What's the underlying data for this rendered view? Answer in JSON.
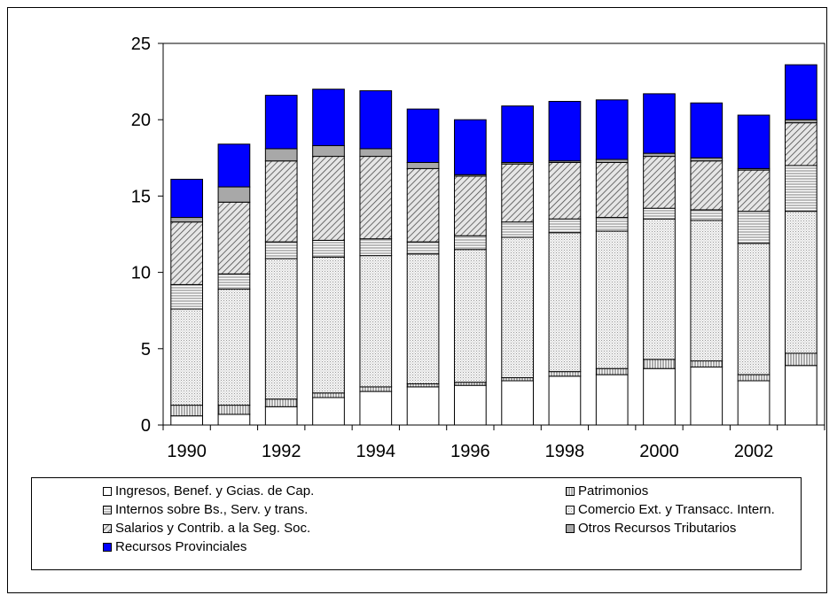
{
  "chart_data": {
    "type": "bar",
    "stacked": true,
    "categories": [
      "1990",
      "1991",
      "1992",
      "1993",
      "1994",
      "1995",
      "1996",
      "1997",
      "1998",
      "1999",
      "2000",
      "2001",
      "2002",
      "2003"
    ],
    "x_tick_labels": [
      "1990",
      "1992",
      "1994",
      "1996",
      "1998",
      "2000",
      "2002"
    ],
    "y_ticks": [
      0,
      5,
      10,
      15,
      20,
      25
    ],
    "ylim": [
      0,
      25
    ],
    "grid": false,
    "legend_position": "bottom",
    "series": [
      {
        "name": "Ingresos, Benef. y Gcias. de Cap.",
        "color": "#ffffff",
        "pattern": "none",
        "values": [
          0.6,
          0.7,
          1.2,
          1.8,
          2.2,
          2.5,
          2.6,
          2.9,
          3.2,
          3.3,
          3.7,
          3.8,
          2.9,
          3.9
        ]
      },
      {
        "name": "Patrimonios",
        "color": "#d8d8d8",
        "pattern": "vlines",
        "values": [
          0.7,
          0.6,
          0.5,
          0.3,
          0.3,
          0.2,
          0.2,
          0.2,
          0.3,
          0.4,
          0.6,
          0.4,
          0.4,
          0.8
        ]
      },
      {
        "name": "Comercio Ext. y Transacc. Intern.",
        "color": "#e8e8e8",
        "pattern": "dots",
        "values": [
          6.3,
          7.6,
          9.2,
          8.9,
          8.6,
          8.5,
          8.7,
          9.2,
          9.1,
          9.0,
          9.2,
          9.2,
          8.6,
          9.3
        ]
      },
      {
        "name": "Internos sobre Bs., Serv. y trans.",
        "color": "#ffffff",
        "pattern": "hlines",
        "values": [
          1.6,
          1.0,
          1.1,
          1.1,
          1.1,
          0.8,
          0.9,
          1.0,
          0.9,
          0.9,
          0.7,
          0.7,
          2.1,
          3.0
        ]
      },
      {
        "name": "Salarios y Contrib. a la Seg. Soc.",
        "color": "#cfcfcf",
        "pattern": "diag",
        "values": [
          4.1,
          4.7,
          5.3,
          5.5,
          5.4,
          4.8,
          3.9,
          3.8,
          3.7,
          3.6,
          3.4,
          3.2,
          2.7,
          2.8
        ]
      },
      {
        "name": "Otros Recursos Tributarios",
        "color": "#a8a8a8",
        "pattern": "none",
        "values": [
          0.3,
          1.0,
          0.8,
          0.7,
          0.5,
          0.4,
          0.1,
          0.1,
          0.1,
          0.2,
          0.2,
          0.2,
          0.1,
          0.2
        ]
      },
      {
        "name": "Recursos Provinciales",
        "color": "#0000ff",
        "pattern": "none",
        "values": [
          2.5,
          2.8,
          3.5,
          3.7,
          3.8,
          3.5,
          3.6,
          3.7,
          3.9,
          3.9,
          3.9,
          3.6,
          3.5,
          3.6
        ]
      }
    ]
  },
  "legend": {
    "items": [
      {
        "label": "Ingresos, Benef. y Gcias. de Cap.",
        "series_index": 0
      },
      {
        "label": "Patrimonios",
        "series_index": 1
      },
      {
        "label": "Internos sobre Bs., Serv. y trans.",
        "series_index": 3
      },
      {
        "label": "Comercio Ext. y Transacc. Intern.",
        "series_index": 2
      },
      {
        "label": "Salarios y Contrib. a la Seg. Soc.",
        "series_index": 4
      },
      {
        "label": "Otros Recursos Tributarios",
        "series_index": 5
      },
      {
        "label": "Recursos Provinciales",
        "series_index": 6
      }
    ]
  }
}
